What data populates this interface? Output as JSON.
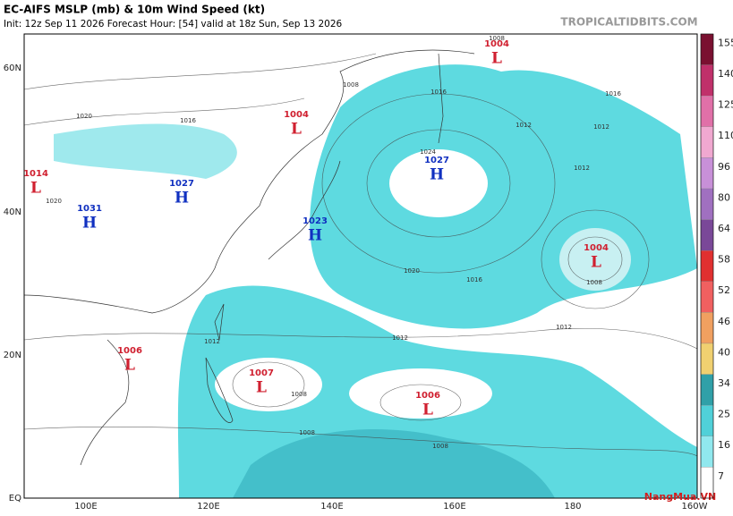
{
  "header": {
    "title": "EC-AIFS MSLP (mb) & 10m Wind Speed (kt)",
    "subtitle": "Init: 12z Sep 11 2026   Forecast Hour: [54]   valid at 18z Sun, Sep 13 2026",
    "site": "TROPICALTIDBITS.COM"
  },
  "map": {
    "lat_labels": [
      "60N",
      "40N",
      "20N",
      "EQ"
    ],
    "lon_labels": [
      "100E",
      "120E",
      "140E",
      "160E",
      "180",
      "160W"
    ],
    "centers": [
      {
        "kind": "L",
        "value": 1004
      },
      {
        "kind": "L",
        "value": 1004
      },
      {
        "kind": "H",
        "value": 1027
      },
      {
        "kind": "H",
        "value": 1027
      },
      {
        "kind": "L",
        "value": 1014
      },
      {
        "kind": "H",
        "value": 1031
      },
      {
        "kind": "H",
        "value": 1023
      },
      {
        "kind": "L",
        "value": 1004
      },
      {
        "kind": "L",
        "value": 1006
      },
      {
        "kind": "L",
        "value": 1007
      },
      {
        "kind": "L",
        "value": 1006
      }
    ],
    "isobar_labels": [
      1008,
      1016,
      1016,
      1012,
      1012,
      1016,
      1020,
      1020,
      1016,
      1012,
      1008,
      1012,
      1008,
      1008,
      1008,
      1020,
      1024,
      1012,
      1012,
      1008
    ]
  },
  "colorbar": {
    "ticks": [
      155,
      140,
      125,
      110,
      96,
      80,
      64,
      58,
      52,
      46,
      40,
      34,
      25,
      16,
      7
    ],
    "colors": [
      "#7a1030",
      "#c0306a",
      "#e070a8",
      "#f0a8d0",
      "#c890d8",
      "#a070c0",
      "#7a4898",
      "#e03030",
      "#f06060",
      "#f0a060",
      "#f0d070",
      "#30a0a8",
      "#50d0d8",
      "#90e8ee",
      "#ffffff"
    ]
  },
  "watermark": "NangMua.VN"
}
